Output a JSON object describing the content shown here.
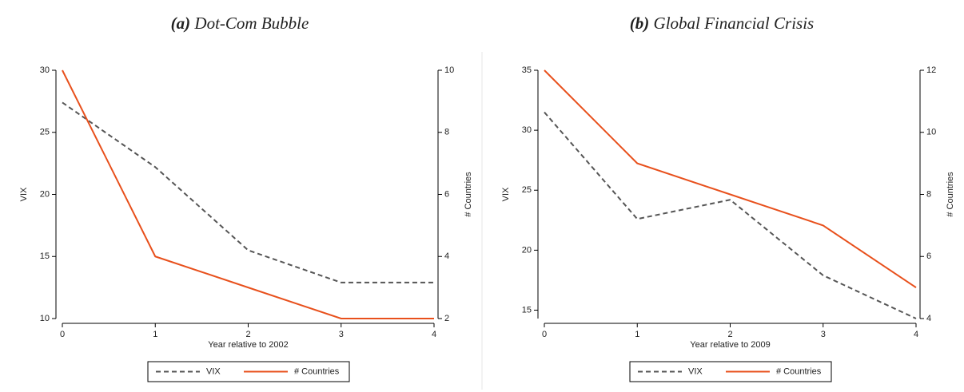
{
  "chart_data": [
    {
      "type": "line",
      "label": "(a)",
      "title": "Dot-Com Bubble",
      "xlabel": "Year relative to 2002",
      "ylabel": "VIX",
      "y2label": "# Countries",
      "x": [
        0,
        1,
        2,
        3,
        4
      ],
      "xlim": [
        0,
        4
      ],
      "xticks": [
        0,
        1,
        2,
        3,
        4
      ],
      "ylim": [
        10,
        30
      ],
      "yticks": [
        10,
        15,
        20,
        25,
        30
      ],
      "y2lim": [
        2,
        10
      ],
      "y2ticks": [
        2,
        4,
        6,
        8,
        10
      ],
      "series": [
        {
          "name": "VIX",
          "color": "#555555",
          "dash": true,
          "values": [
            27.4,
            22.2,
            15.5,
            12.9,
            12.9
          ]
        },
        {
          "name": "# Countries",
          "color": "#e8501c",
          "dash": false,
          "axis": "y2",
          "values": [
            10,
            4,
            3,
            2,
            2
          ]
        }
      ]
    },
    {
      "type": "line",
      "label": "(b)",
      "title": "Global Financial Crisis",
      "xlabel": "Year relative to 2009",
      "ylabel": "VIX",
      "y2label": "# Countries",
      "x": [
        0,
        1,
        2,
        3,
        4
      ],
      "xlim": [
        0,
        4
      ],
      "xticks": [
        0,
        1,
        2,
        3,
        4
      ],
      "ylim": [
        14.3,
        35
      ],
      "yticks": [
        15,
        20,
        25,
        30,
        35
      ],
      "y2lim": [
        4,
        12
      ],
      "y2ticks": [
        4,
        6,
        8,
        10,
        12
      ],
      "series": [
        {
          "name": "VIX",
          "color": "#555555",
          "dash": true,
          "values": [
            31.5,
            22.6,
            24.2,
            17.9,
            14.3
          ]
        },
        {
          "name": "# Countries",
          "color": "#e8501c",
          "dash": false,
          "axis": "y2",
          "values": [
            12,
            9,
            8,
            7,
            5
          ]
        }
      ]
    }
  ]
}
